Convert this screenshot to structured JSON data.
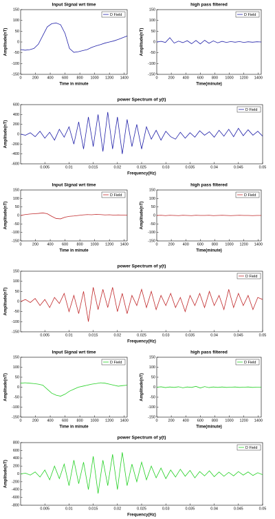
{
  "chart_data": [
    {
      "type": "line",
      "title": "Input Signal wrt time",
      "xlabel": "Time in minute",
      "ylabel": "Amplitude(nT)",
      "x": [
        0,
        60,
        120,
        180,
        240,
        300,
        360,
        420,
        480,
        540,
        600,
        660,
        720,
        780,
        840,
        900,
        960,
        1020,
        1080,
        1140,
        1200,
        1260,
        1320,
        1380,
        1440
      ],
      "series": [
        {
          "name": "D Field",
          "color": "#1f1fa8",
          "values": [
            -35,
            -38,
            -36,
            -30,
            -10,
            30,
            70,
            85,
            88,
            80,
            40,
            -30,
            -48,
            -45,
            -40,
            -35,
            -25,
            -18,
            -12,
            -5,
            0,
            5,
            12,
            20,
            28
          ]
        }
      ],
      "xlim": [
        0,
        1440
      ],
      "ylim": [
        -150,
        150
      ],
      "xticks": [
        0,
        200,
        400,
        600,
        800,
        1000,
        1200,
        1400
      ],
      "yticks": [
        -150,
        -100,
        -50,
        0,
        50,
        100,
        150
      ],
      "legend": "upper right"
    },
    {
      "type": "line",
      "title": "high pass filtered",
      "xlabel": "Time(minute)",
      "ylabel": "Amplitude(nT)",
      "x": [
        0,
        60,
        120,
        180,
        240,
        300,
        360,
        420,
        480,
        540,
        600,
        660,
        720,
        780,
        840,
        900,
        960,
        1020,
        1080,
        1140,
        1200,
        1260,
        1320,
        1380,
        1440
      ],
      "series": [
        {
          "name": "D Field",
          "color": "#1f1fa8",
          "values": [
            0,
            3,
            -2,
            20,
            -5,
            4,
            -3,
            6,
            -8,
            7,
            -9,
            8,
            -6,
            5,
            -4,
            3,
            -2,
            2,
            -1,
            2,
            -2,
            1,
            -1,
            1,
            0
          ]
        }
      ],
      "xlim": [
        0,
        1440
      ],
      "ylim": [
        -150,
        150
      ],
      "xticks": [
        0,
        200,
        400,
        600,
        800,
        1000,
        1200,
        1400
      ],
      "yticks": [
        -150,
        -100,
        -50,
        0,
        50,
        100,
        150
      ],
      "legend": "upper right"
    },
    {
      "type": "line",
      "title": "power Spectrum of y(t)",
      "xlabel": "Frequency(Hz)",
      "ylabel": "Amplitude(nT)",
      "x": [
        0,
        0.001,
        0.002,
        0.003,
        0.004,
        0.005,
        0.006,
        0.007,
        0.008,
        0.009,
        0.01,
        0.011,
        0.012,
        0.013,
        0.014,
        0.015,
        0.016,
        0.017,
        0.018,
        0.019,
        0.02,
        0.021,
        0.022,
        0.023,
        0.024,
        0.025,
        0.026,
        0.027,
        0.028,
        0.029,
        0.03,
        0.031,
        0.032,
        0.033,
        0.034,
        0.035,
        0.036,
        0.037,
        0.038,
        0.039,
        0.04,
        0.041,
        0.042,
        0.043,
        0.044,
        0.045,
        0.046,
        0.047,
        0.048,
        0.049,
        0.05
      ],
      "series": [
        {
          "name": "D Field",
          "color": "#1f1fa8",
          "values": [
            0,
            -20,
            30,
            -50,
            60,
            -80,
            40,
            -120,
            100,
            -60,
            150,
            -200,
            250,
            -300,
            350,
            -250,
            400,
            -350,
            450,
            -300,
            350,
            -400,
            300,
            -250,
            200,
            -300,
            150,
            -100,
            80,
            -120,
            60,
            -50,
            -100,
            40,
            -80,
            30,
            -60,
            70,
            -20,
            50,
            -60,
            80,
            -40,
            100,
            -50,
            120,
            -30,
            90,
            -20,
            60,
            -40
          ]
        }
      ],
      "xlim": [
        0,
        0.05
      ],
      "ylim": [
        -600,
        600
      ],
      "xticks": [
        0.005,
        0.01,
        0.015,
        0.02,
        0.025,
        0.03,
        0.035,
        0.04,
        0.045,
        0.05
      ],
      "yticks": [
        -600,
        -400,
        -200,
        0,
        200,
        400,
        600
      ],
      "legend": "upper right"
    },
    {
      "type": "line",
      "title": "Input Signal wrt time",
      "xlabel": "Time in minute",
      "ylabel": "Amplitude(nT)",
      "x": [
        0,
        60,
        120,
        180,
        240,
        300,
        360,
        420,
        480,
        540,
        600,
        660,
        720,
        780,
        840,
        900,
        960,
        1020,
        1080,
        1140,
        1200,
        1260,
        1320,
        1380,
        1440
      ],
      "series": [
        {
          "name": "D Field",
          "color": "#c0282a",
          "values": [
            0,
            5,
            8,
            10,
            12,
            15,
            10,
            -5,
            -18,
            -20,
            -10,
            -5,
            -3,
            0,
            3,
            5,
            4,
            6,
            5,
            3,
            4,
            2,
            3,
            2,
            1
          ]
        }
      ],
      "xlim": [
        0,
        1440
      ],
      "ylim": [
        -150,
        150
      ],
      "xticks": [
        0,
        200,
        400,
        600,
        800,
        1000,
        1200,
        1400
      ],
      "yticks": [
        -150,
        -100,
        -50,
        0,
        50,
        100,
        150
      ],
      "legend": "upper right"
    },
    {
      "type": "line",
      "title": "high pass filtered",
      "xlabel": "Time(minute)",
      "ylabel": "Amplitude(nT)",
      "x": [
        0,
        60,
        120,
        180,
        240,
        300,
        360,
        420,
        480,
        540,
        600,
        660,
        720,
        780,
        840,
        900,
        960,
        1020,
        1080,
        1140,
        1200,
        1260,
        1320,
        1380,
        1440
      ],
      "series": [
        {
          "name": "D Field",
          "color": "#c0282a",
          "values": [
            0,
            1,
            -1,
            1,
            0,
            -1,
            1,
            0,
            -1,
            1,
            0,
            0,
            1,
            -1,
            0,
            1,
            0,
            -1,
            0,
            1,
            0,
            0,
            -1,
            0,
            0
          ]
        }
      ],
      "xlim": [
        0,
        1440
      ],
      "ylim": [
        -150,
        150
      ],
      "xticks": [
        0,
        200,
        400,
        600,
        800,
        1000,
        1200,
        1400
      ],
      "yticks": [
        -150,
        -100,
        -50,
        0,
        50,
        100,
        150
      ],
      "legend": "upper right"
    },
    {
      "type": "line",
      "title": "power Spectrum of y(t)",
      "xlabel": "Frequency(Hz)",
      "ylabel": "Amplitude(nT)",
      "x": [
        0,
        0.001,
        0.002,
        0.003,
        0.004,
        0.005,
        0.006,
        0.007,
        0.008,
        0.009,
        0.01,
        0.011,
        0.012,
        0.013,
        0.014,
        0.015,
        0.016,
        0.017,
        0.018,
        0.019,
        0.02,
        0.021,
        0.022,
        0.023,
        0.024,
        0.025,
        0.026,
        0.027,
        0.028,
        0.029,
        0.03,
        0.031,
        0.032,
        0.033,
        0.034,
        0.035,
        0.036,
        0.037,
        0.038,
        0.039,
        0.04,
        0.041,
        0.042,
        0.043,
        0.044,
        0.045,
        0.046,
        0.047,
        0.048,
        0.049,
        0.05
      ],
      "series": [
        {
          "name": "D Field",
          "color": "#c0282a",
          "values": [
            0,
            10,
            -5,
            15,
            -20,
            10,
            -30,
            20,
            -10,
            40,
            -50,
            30,
            -60,
            50,
            -100,
            70,
            -40,
            60,
            -30,
            70,
            -50,
            40,
            -60,
            30,
            -20,
            60,
            -30,
            50,
            -40,
            30,
            -20,
            40,
            -30,
            20,
            -50,
            30,
            -20,
            40,
            -30,
            50,
            -20,
            30,
            -40,
            60,
            -30,
            40,
            -20,
            30,
            -40,
            20,
            10
          ]
        }
      ],
      "xlim": [
        0,
        0.05
      ],
      "ylim": [
        -150,
        150
      ],
      "xticks": [
        0.005,
        0.01,
        0.015,
        0.02,
        0.025,
        0.03,
        0.035,
        0.04,
        0.045,
        0.05
      ],
      "yticks": [
        -150,
        -100,
        -50,
        0,
        50,
        100,
        150
      ],
      "legend": "upper right"
    },
    {
      "type": "line",
      "title": "Input Signal wrt time",
      "xlabel": "Time in minute",
      "ylabel": "Amplitude(nT)",
      "x": [
        0,
        60,
        120,
        180,
        240,
        300,
        360,
        420,
        480,
        540,
        600,
        660,
        720,
        780,
        840,
        900,
        960,
        1020,
        1080,
        1140,
        1200,
        1260,
        1320,
        1380,
        1440
      ],
      "series": [
        {
          "name": "D Field",
          "color": "#22d022",
          "values": [
            20,
            22,
            20,
            18,
            15,
            10,
            -10,
            -30,
            -40,
            -45,
            -35,
            -20,
            -10,
            0,
            5,
            10,
            15,
            18,
            22,
            20,
            15,
            10,
            5,
            8,
            10
          ]
        }
      ],
      "xlim": [
        0,
        1440
      ],
      "ylim": [
        -150,
        150
      ],
      "xticks": [
        0,
        200,
        400,
        600,
        800,
        1000,
        1200,
        1400
      ],
      "yticks": [
        -150,
        -100,
        -50,
        0,
        50,
        100,
        150
      ],
      "legend": "upper right"
    },
    {
      "type": "line",
      "title": "high pass filtered",
      "xlabel": "Time(minute)",
      "ylabel": "Amplitude(nT)",
      "x": [
        0,
        60,
        120,
        180,
        240,
        300,
        360,
        420,
        480,
        540,
        600,
        660,
        720,
        780,
        840,
        900,
        960,
        1020,
        1080,
        1140,
        1200,
        1260,
        1320,
        1380,
        1440
      ],
      "series": [
        {
          "name": "D Field",
          "color": "#22d022",
          "values": [
            0,
            2,
            -2,
            1,
            -1,
            2,
            -3,
            1,
            -1,
            4,
            -4,
            3,
            -2,
            1,
            -1,
            1,
            -1,
            0,
            1,
            -1,
            0,
            1,
            -1,
            0,
            0
          ]
        }
      ],
      "xlim": [
        0,
        1440
      ],
      "ylim": [
        -150,
        150
      ],
      "xticks": [
        0,
        200,
        400,
        600,
        800,
        1000,
        1200,
        1400
      ],
      "yticks": [
        -150,
        -100,
        -50,
        0,
        50,
        100,
        150
      ],
      "legend": "upper right"
    },
    {
      "type": "line",
      "title": "power Spectrum of y(t)",
      "xlabel": "Frequency(Hz)",
      "ylabel": "Amplitude(nT)",
      "x": [
        0,
        0.001,
        0.002,
        0.003,
        0.004,
        0.005,
        0.006,
        0.007,
        0.008,
        0.009,
        0.01,
        0.011,
        0.012,
        0.013,
        0.014,
        0.015,
        0.016,
        0.017,
        0.018,
        0.019,
        0.02,
        0.021,
        0.022,
        0.023,
        0.024,
        0.025,
        0.026,
        0.027,
        0.028,
        0.029,
        0.03,
        0.031,
        0.032,
        0.033,
        0.034,
        0.035,
        0.036,
        0.037,
        0.038,
        0.039,
        0.04,
        0.041,
        0.042,
        0.043,
        0.044,
        0.045,
        0.046,
        0.047,
        0.048,
        0.049,
        0.05
      ],
      "series": [
        {
          "name": "D Field",
          "color": "#22d022",
          "values": [
            0,
            20,
            -30,
            50,
            -80,
            100,
            -150,
            200,
            -120,
            250,
            -300,
            350,
            -250,
            300,
            -400,
            450,
            -500,
            350,
            -300,
            500,
            -400,
            550,
            -300,
            250,
            -200,
            300,
            -150,
            200,
            -100,
            150,
            -120,
            100,
            -80,
            120,
            -60,
            90,
            -100,
            60,
            -50,
            80,
            -70,
            50,
            -60,
            40,
            -50,
            60,
            -30,
            50,
            -40,
            30,
            -20
          ]
        }
      ],
      "xlim": [
        0,
        0.05
      ],
      "ylim": [
        -800,
        800
      ],
      "xticks": [
        0.005,
        0.01,
        0.015,
        0.02,
        0.025,
        0.03,
        0.035,
        0.04,
        0.045,
        0.05
      ],
      "yticks": [
        -800,
        -600,
        -400,
        -200,
        0,
        200,
        400,
        600,
        800
      ],
      "legend": "upper right"
    }
  ]
}
